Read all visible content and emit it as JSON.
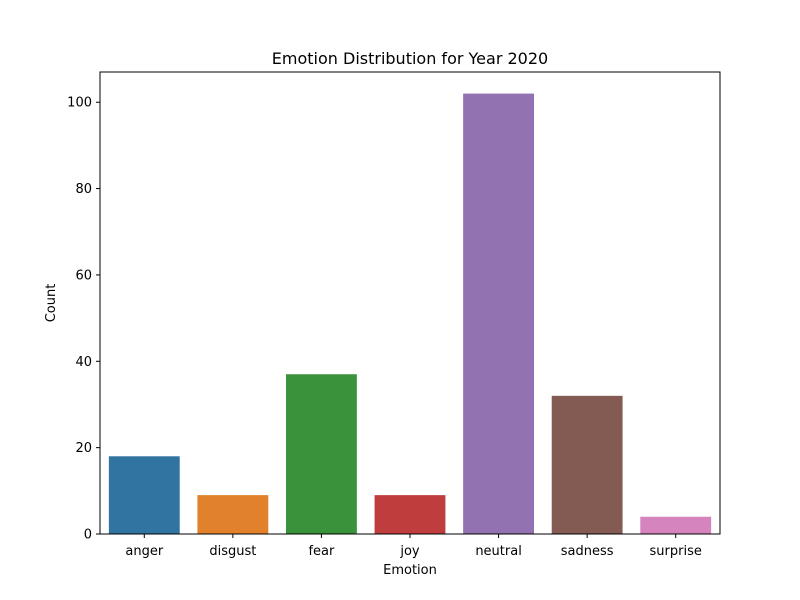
{
  "chart_data": {
    "type": "bar",
    "title": "Emotion Distribution for Year 2020",
    "xlabel": "Emotion",
    "ylabel": "Count",
    "categories": [
      "anger",
      "disgust",
      "fear",
      "joy",
      "neutral",
      "sadness",
      "surprise"
    ],
    "values": [
      18,
      9,
      37,
      9,
      102,
      32,
      4
    ],
    "colors": [
      "#3274a1",
      "#e1812c",
      "#3a923a",
      "#c03d3e",
      "#9372b2",
      "#845b53",
      "#d684bd"
    ],
    "ylim": [
      0,
      107
    ],
    "yticks": [
      0,
      20,
      40,
      60,
      80,
      100
    ],
    "grid": false,
    "legend": "none"
  }
}
